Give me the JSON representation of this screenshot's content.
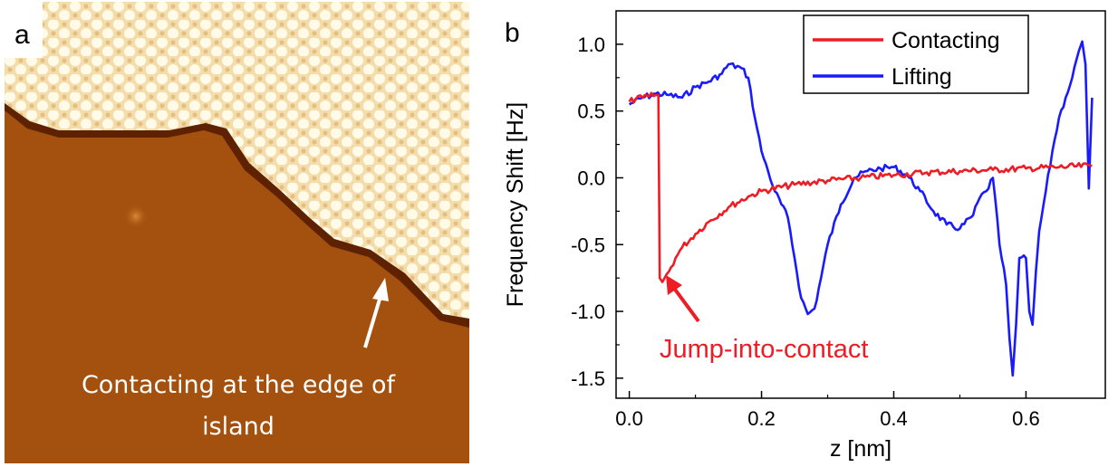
{
  "panel_a": {
    "letter": "a",
    "caption_line1": "Contacting at the edge of",
    "caption_line2": "island",
    "colors": {
      "substrate": "#a4500e",
      "island": "#f6e3b0",
      "island_dark": "#6a2805"
    }
  },
  "panel_b": {
    "letter": "b",
    "annotation": "Jump-into-contact"
  },
  "chart_data": {
    "type": "line",
    "xlabel": "z [nm]",
    "ylabel": "Frequency Shift [Hz]",
    "xlim": [
      -0.02,
      0.72
    ],
    "ylim": [
      -1.65,
      1.25
    ],
    "xticks": [
      "0.0",
      "0.2",
      "0.4",
      "0.6"
    ],
    "xtick_values": [
      0.0,
      0.2,
      0.4,
      0.6
    ],
    "yticks": [
      "1.0",
      "0.5",
      "0.0",
      "-0.5",
      "-1.0",
      "-1.5"
    ],
    "ytick_values": [
      1.0,
      0.5,
      0.0,
      -0.5,
      -1.0,
      -1.5
    ],
    "legend_position": "top-right",
    "series": [
      {
        "name": "Contacting",
        "color": "#ee1c24",
        "x": [
          0.0,
          0.01,
          0.02,
          0.03,
          0.04,
          0.044,
          0.046,
          0.05,
          0.06,
          0.07,
          0.08,
          0.1,
          0.12,
          0.15,
          0.18,
          0.2,
          0.25,
          0.3,
          0.35,
          0.4,
          0.45,
          0.5,
          0.55,
          0.6,
          0.65,
          0.7
        ],
        "y": [
          0.57,
          0.59,
          0.6,
          0.61,
          0.62,
          0.62,
          -0.75,
          -0.78,
          -0.7,
          -0.6,
          -0.52,
          -0.42,
          -0.33,
          -0.22,
          -0.14,
          -0.1,
          -0.05,
          -0.02,
          0.0,
          0.02,
          0.04,
          0.05,
          0.06,
          0.07,
          0.08,
          0.09
        ]
      },
      {
        "name": "Lifting",
        "color": "#1a1aff",
        "x": [
          0.0,
          0.02,
          0.04,
          0.06,
          0.08,
          0.1,
          0.12,
          0.14,
          0.15,
          0.17,
          0.18,
          0.19,
          0.2,
          0.21,
          0.22,
          0.24,
          0.25,
          0.26,
          0.27,
          0.28,
          0.29,
          0.3,
          0.32,
          0.34,
          0.36,
          0.38,
          0.4,
          0.42,
          0.44,
          0.46,
          0.48,
          0.5,
          0.52,
          0.53,
          0.54,
          0.55,
          0.56,
          0.57,
          0.575,
          0.58,
          0.585,
          0.59,
          0.6,
          0.605,
          0.61,
          0.615,
          0.62,
          0.63,
          0.64,
          0.65,
          0.66,
          0.67,
          0.68,
          0.685,
          0.69,
          0.695,
          0.7
        ],
        "y": [
          0.55,
          0.6,
          0.63,
          0.62,
          0.6,
          0.68,
          0.72,
          0.78,
          0.85,
          0.82,
          0.75,
          0.45,
          0.2,
          0.05,
          -0.1,
          -0.3,
          -0.6,
          -0.9,
          -1.02,
          -0.98,
          -0.75,
          -0.5,
          -0.2,
          0.0,
          0.05,
          0.07,
          0.08,
          0.02,
          -0.1,
          -0.25,
          -0.35,
          -0.38,
          -0.28,
          -0.15,
          -0.1,
          0.0,
          -0.5,
          -0.8,
          -1.2,
          -1.48,
          -1.1,
          -0.6,
          -0.6,
          -1.0,
          -1.1,
          -0.7,
          -0.4,
          -0.1,
          0.2,
          0.45,
          0.6,
          0.75,
          0.95,
          1.02,
          0.85,
          -0.08,
          0.6
        ]
      }
    ]
  }
}
